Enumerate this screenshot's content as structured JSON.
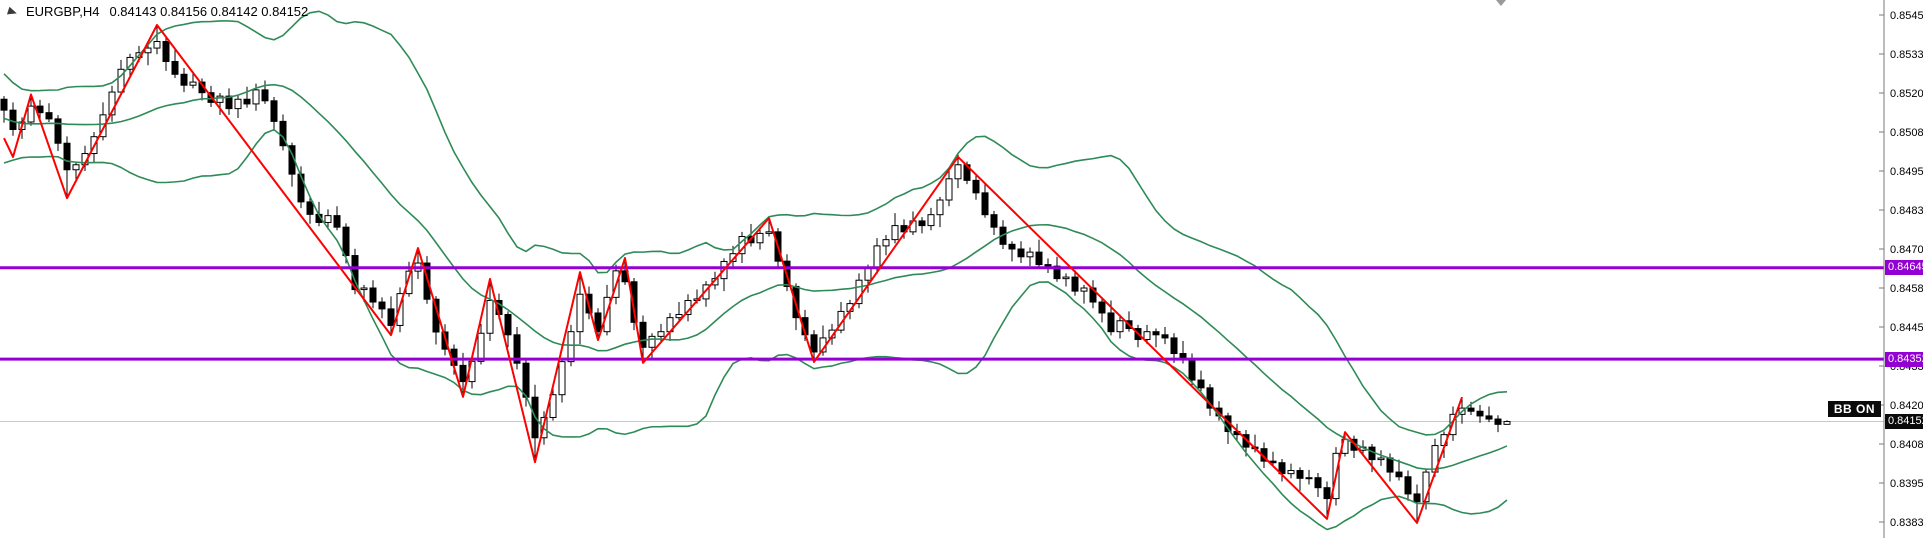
{
  "title": {
    "symbol_period": "EURGBP,H4",
    "ohlc_text": "0.84143 0.84156 0.84142 0.84152"
  },
  "bb_badge_label": "BB ON",
  "price_tags": {
    "resistance": "0.84645",
    "support": "0.84352",
    "current": "0.84152"
  },
  "axis": {
    "labels": [
      "0.85455",
      "0.85330",
      "0.85205",
      "0.85080",
      "0.84955",
      "0.84830",
      "0.84705",
      "0.84580",
      "0.84455",
      "0.84330",
      "0.84205",
      "0.84080",
      "0.83955",
      "0.83830"
    ],
    "max_price": 0.85455,
    "min_price": 0.8383
  },
  "colors": {
    "background": "#ffffff",
    "candle_outline": "#000000",
    "candle_bull_fill": "#ffffff",
    "candle_bear_fill": "#000000",
    "bollinger": "#2E8B57",
    "zigzag": "#FF0000",
    "level_lines": "#9400D3",
    "current_price_line": "#c8c8c8",
    "axis_line": "#7a7a7a",
    "axis_text": "#000000",
    "tag_text": "#ffffff"
  },
  "chart_data": {
    "type": "candlestick",
    "symbol": "EURGBP",
    "timeframe": "H4",
    "title": "EURGBP,H4",
    "last_ohlc": {
      "open": 0.84143,
      "high": 0.84156,
      "low": 0.84142,
      "close": 0.84152
    },
    "price_range": [
      0.8383,
      0.85455
    ],
    "grid": false,
    "note": "candles are [open,high,low,close] encoded as (price - price_base)/price_scale",
    "price_base": 0.8,
    "price_scale": 1e-05,
    "candles": [
      [
        5185,
        5195,
        5110,
        5150
      ],
      [
        5150,
        5175,
        5068,
        5088
      ],
      [
        5088,
        5127,
        5058,
        5112
      ],
      [
        5112,
        5203,
        5100,
        5163
      ],
      [
        5163,
        5183,
        5120,
        5142
      ],
      [
        5142,
        5172,
        5112,
        5122
      ],
      [
        5122,
        5134,
        5019,
        5044
      ],
      [
        5044,
        5066,
        4868,
        4959
      ],
      [
        4959,
        4985,
        4919,
        4975
      ],
      [
        4975,
        5036,
        4955,
        5011
      ],
      [
        5011,
        5080,
        4981,
        5065
      ],
      [
        5065,
        5175,
        5053,
        5135
      ],
      [
        5135,
        5228,
        5113,
        5208
      ],
      [
        5208,
        5311,
        5198,
        5281
      ],
      [
        5281,
        5331,
        5256,
        5319
      ],
      [
        5319,
        5356,
        5304,
        5334
      ],
      [
        5334,
        5359,
        5294,
        5349
      ],
      [
        5349,
        5423,
        5329,
        5370
      ],
      [
        5370,
        5385,
        5276,
        5306
      ],
      [
        5306,
        5346,
        5253,
        5265
      ],
      [
        5265,
        5285,
        5208,
        5230
      ],
      [
        5230,
        5270,
        5220,
        5240
      ],
      [
        5240,
        5252,
        5181,
        5206
      ],
      [
        5206,
        5228,
        5160,
        5175
      ],
      [
        5175,
        5205,
        5135,
        5195
      ],
      [
        5195,
        5220,
        5135,
        5155
      ],
      [
        5155,
        5200,
        5125,
        5185
      ],
      [
        5185,
        5225,
        5158,
        5170
      ],
      [
        5170,
        5235,
        5148,
        5215
      ],
      [
        5215,
        5245,
        5170,
        5180
      ],
      [
        5180,
        5192,
        5089,
        5114
      ],
      [
        5114,
        5136,
        5021,
        5036
      ],
      [
        5036,
        5046,
        4905,
        4945
      ],
      [
        4945,
        4970,
        4836,
        4856
      ],
      [
        4856,
        4871,
        4786,
        4816
      ],
      [
        4816,
        4856,
        4778,
        4790
      ],
      [
        4790,
        4832,
        4768,
        4812
      ],
      [
        4812,
        4842,
        4765,
        4775
      ],
      [
        4775,
        4787,
        4659,
        4684
      ],
      [
        4684,
        4706,
        4560,
        4575
      ],
      [
        4575,
        4590,
        4535,
        4580
      ],
      [
        4580,
        4605,
        4515,
        4535
      ],
      [
        4535,
        4550,
        4483,
        4513
      ],
      [
        4513,
        4553,
        4429,
        4460
      ],
      [
        4460,
        4582,
        4438,
        4562
      ],
      [
        4562,
        4664,
        4552,
        4634
      ],
      [
        4634,
        4708,
        4609,
        4660
      ],
      [
        4660,
        4682,
        4529,
        4544
      ],
      [
        4544,
        4554,
        4399,
        4439
      ],
      [
        4439,
        4464,
        4364,
        4384
      ],
      [
        4384,
        4399,
        4302,
        4332
      ],
      [
        4332,
        4372,
        4231,
        4280
      ],
      [
        4280,
        4365,
        4258,
        4345
      ],
      [
        4345,
        4465,
        4335,
        4435
      ],
      [
        4435,
        4609,
        4410,
        4540
      ],
      [
        4540,
        4562,
        4480,
        4495
      ],
      [
        4495,
        4505,
        4390,
        4430
      ],
      [
        4430,
        4455,
        4319,
        4339
      ],
      [
        4339,
        4354,
        4200,
        4230
      ],
      [
        4230,
        4270,
        4022,
        4100
      ],
      [
        4100,
        4185,
        4078,
        4165
      ],
      [
        4165,
        4268,
        4155,
        4238
      ],
      [
        4238,
        4356,
        4213,
        4344
      ],
      [
        4344,
        4462,
        4329,
        4440
      ],
      [
        4440,
        4631,
        4400,
        4560
      ],
      [
        4560,
        4585,
        4480,
        4500
      ],
      [
        4500,
        4515,
        4413,
        4440
      ],
      [
        4440,
        4590,
        4428,
        4550
      ],
      [
        4550,
        4655,
        4528,
        4635
      ],
      [
        4635,
        4676,
        4590,
        4600
      ],
      [
        4600,
        4612,
        4445,
        4470
      ],
      [
        4470,
        4492,
        4340,
        4390
      ],
      [
        4390,
        4435,
        4350,
        4425
      ],
      [
        4425,
        4465,
        4405,
        4440
      ],
      [
        4440,
        4500,
        4410,
        4485
      ],
      [
        4485,
        4535,
        4473,
        4495
      ],
      [
        4495,
        4560,
        4473,
        4540
      ],
      [
        4540,
        4575,
        4530,
        4545
      ],
      [
        4545,
        4602,
        4520,
        4590
      ],
      [
        4590,
        4632,
        4575,
        4610
      ],
      [
        4610,
        4675,
        4570,
        4665
      ],
      [
        4665,
        4715,
        4645,
        4690
      ],
      [
        4690,
        4760,
        4660,
        4745
      ],
      [
        4745,
        4785,
        4713,
        4725
      ],
      [
        4725,
        4775,
        4703,
        4755
      ],
      [
        4755,
        4804,
        4745,
        4760
      ],
      [
        4760,
        4772,
        4641,
        4666
      ],
      [
        4666,
        4688,
        4570,
        4585
      ],
      [
        4585,
        4595,
        4445,
        4485
      ],
      [
        4485,
        4510,
        4410,
        4430
      ],
      [
        4430,
        4445,
        4343,
        4375
      ],
      [
        4375,
        4460,
        4363,
        4420
      ],
      [
        4420,
        4465,
        4398,
        4445
      ],
      [
        4445,
        4535,
        4435,
        4505
      ],
      [
        4505,
        4542,
        4480,
        4530
      ],
      [
        4530,
        4627,
        4515,
        4605
      ],
      [
        4605,
        4655,
        4565,
        4645
      ],
      [
        4645,
        4740,
        4625,
        4715
      ],
      [
        4715,
        4750,
        4685,
        4735
      ],
      [
        4735,
        4820,
        4723,
        4780
      ],
      [
        4780,
        4800,
        4738,
        4760
      ],
      [
        4760,
        4825,
        4750,
        4795
      ],
      [
        4795,
        4807,
        4755,
        4780
      ],
      [
        4780,
        4837,
        4765,
        4815
      ],
      [
        4815,
        4872,
        4775,
        4862
      ],
      [
        4862,
        4955,
        4842,
        4930
      ],
      [
        4930,
        5010,
        4900,
        4975
      ],
      [
        4975,
        4985,
        4913,
        4925
      ],
      [
        4925,
        4945,
        4863,
        4885
      ],
      [
        4885,
        4915,
        4805,
        4815
      ],
      [
        4815,
        4827,
        4750,
        4775
      ],
      [
        4775,
        4797,
        4705,
        4720
      ],
      [
        4720,
        4730,
        4665,
        4705
      ],
      [
        4705,
        4730,
        4660,
        4680
      ],
      [
        4680,
        4710,
        4650,
        4695
      ],
      [
        4695,
        4735,
        4643,
        4655
      ],
      [
        4655,
        4675,
        4628,
        4650
      ],
      [
        4650,
        4680,
        4600,
        4610
      ],
      [
        4610,
        4627,
        4585,
        4615
      ],
      [
        4615,
        4637,
        4555,
        4570
      ],
      [
        4570,
        4590,
        4530,
        4580
      ],
      [
        4580,
        4605,
        4515,
        4535
      ],
      [
        4535,
        4550,
        4470,
        4500
      ],
      [
        4500,
        4540,
        4428,
        4440
      ],
      [
        4440,
        4495,
        4418,
        4475
      ],
      [
        4475,
        4505,
        4440,
        4450
      ],
      [
        4450,
        4462,
        4390,
        4415
      ],
      [
        4415,
        4462,
        4400,
        4440
      ],
      [
        4440,
        4450,
        4390,
        4430
      ],
      [
        4430,
        4455,
        4400,
        4420
      ],
      [
        4420,
        4435,
        4340,
        4370
      ],
      [
        4370,
        4410,
        4338,
        4350
      ],
      [
        4350,
        4370,
        4263,
        4285
      ],
      [
        4285,
        4315,
        4250,
        4260
      ],
      [
        4260,
        4272,
        4170,
        4195
      ],
      [
        4195,
        4217,
        4155,
        4170
      ],
      [
        4170,
        4180,
        4080,
        4120
      ],
      [
        4120,
        4145,
        4090,
        4110
      ],
      [
        4110,
        4125,
        4040,
        4070
      ],
      [
        4070,
        4110,
        4053,
        4065
      ],
      [
        4065,
        4085,
        4003,
        4025
      ],
      [
        4025,
        4055,
        4010,
        4020
      ],
      [
        4020,
        4032,
        3960,
        3985
      ],
      [
        3985,
        4017,
        3970,
        3995
      ],
      [
        3995,
        4005,
        3930,
        3970
      ],
      [
        3970,
        3997,
        3950,
        3972
      ],
      [
        3972,
        3987,
        3910,
        3940
      ],
      [
        3940,
        3960,
        3840,
        3905
      ],
      [
        3905,
        4070,
        3883,
        4050
      ],
      [
        4050,
        4118,
        4040,
        4095
      ],
      [
        4095,
        4107,
        4035,
        4060
      ],
      [
        4060,
        4092,
        4045,
        4070
      ],
      [
        4070,
        4080,
        3990,
        4030
      ],
      [
        4030,
        4060,
        4010,
        4035
      ],
      [
        4035,
        4050,
        3960,
        3990
      ],
      [
        3990,
        4030,
        3963,
        3975
      ],
      [
        3975,
        3995,
        3898,
        3920
      ],
      [
        3920,
        3950,
        3827,
        3895
      ],
      [
        3895,
        4002,
        3870,
        3990
      ],
      [
        3990,
        4097,
        3975,
        4075
      ],
      [
        4075,
        4120,
        4035,
        4110
      ],
      [
        4110,
        4200,
        4090,
        4175
      ],
      [
        4175,
        4230,
        4145,
        4195
      ],
      [
        4195,
        4215,
        4173,
        4185
      ],
      [
        4185,
        4205,
        4148,
        4170
      ],
      [
        4170,
        4200,
        4150,
        4160
      ],
      [
        4160,
        4172,
        4118,
        4143
      ],
      [
        4143,
        4156,
        4142,
        4152
      ]
    ],
    "pre_window_closes": [
      5260,
      5280,
      5240,
      5190,
      5140,
      5090,
      5050,
      5010,
      4990,
      5020,
      5060,
      5110,
      5150,
      5180,
      5160,
      5130,
      5110,
      5120,
      5140,
      5150
    ],
    "indicators": {
      "bollinger": {
        "period": 20,
        "deviations": 2,
        "applied_to": "close",
        "lines": [
          "upper",
          "middle",
          "lower"
        ],
        "color": "#2E8B57",
        "status_label": "BB ON"
      },
      "zigzag": {
        "color": "#FF0000",
        "points": [
          [
            0,
            5060
          ],
          [
            1,
            5000
          ],
          [
            3,
            5200
          ],
          [
            7,
            4868
          ],
          [
            17,
            5423
          ],
          [
            43,
            4429
          ],
          [
            46,
            4708
          ],
          [
            51,
            4231
          ],
          [
            54,
            4609
          ],
          [
            59,
            4022
          ],
          [
            64,
            4631
          ],
          [
            66,
            4413
          ],
          [
            69,
            4676
          ],
          [
            71,
            4340
          ],
          [
            85,
            4804
          ],
          [
            90,
            4343
          ],
          [
            106,
            5000
          ],
          [
            147,
            3840
          ],
          [
            149,
            4118
          ],
          [
            157,
            3827
          ],
          [
            162,
            4230
          ]
        ]
      }
    },
    "horizontal_lines": [
      {
        "name": "resistance",
        "price": 0.84645,
        "color": "#9400D3"
      },
      {
        "name": "support",
        "price": 0.84352,
        "color": "#9400D3"
      }
    ],
    "current_price": 0.84152
  }
}
